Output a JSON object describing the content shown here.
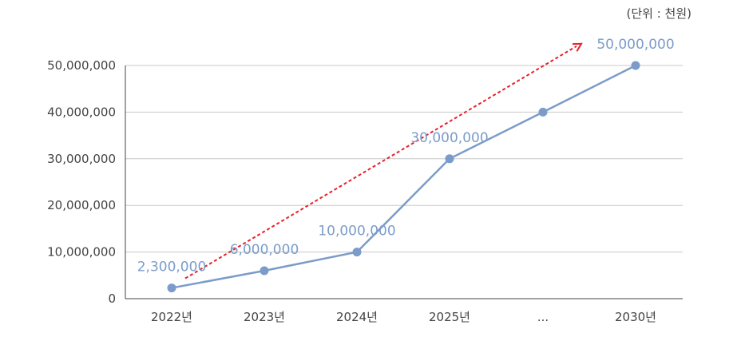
{
  "unit_note": "(단위 : 천원)",
  "chart_data": {
    "type": "line",
    "title": "",
    "xlabel": "",
    "ylabel": "",
    "categories": [
      "2022년",
      "2023년",
      "2024년",
      "2025년",
      "...",
      "2030년"
    ],
    "series": [
      {
        "values": [
          2300000,
          6000000,
          10000000,
          30000000,
          40000000,
          50000000
        ]
      }
    ],
    "data_labels": [
      "2,300,000",
      "6,000,000",
      "10,000,000",
      "30,000,000",
      "",
      "50,000,000"
    ],
    "ylim": [
      0,
      50000000
    ],
    "yticks": [
      {
        "value": 0,
        "label": "0"
      },
      {
        "value": 10000000,
        "label": "10,000,000"
      },
      {
        "value": 20000000,
        "label": "20,000,000"
      },
      {
        "value": 30000000,
        "label": "30,000,000"
      },
      {
        "value": 40000000,
        "label": "40,000,000"
      },
      {
        "value": 50000000,
        "label": "50,000,000"
      }
    ],
    "grid": true,
    "trend_arrow": {
      "from_value": 2300000,
      "to_value": 55000000,
      "color": "#e8202a",
      "style": "dashed"
    },
    "colors": {
      "line": "#7b9cc9",
      "marker": "#7b9cc9",
      "grid": "#c8c8c8"
    }
  }
}
